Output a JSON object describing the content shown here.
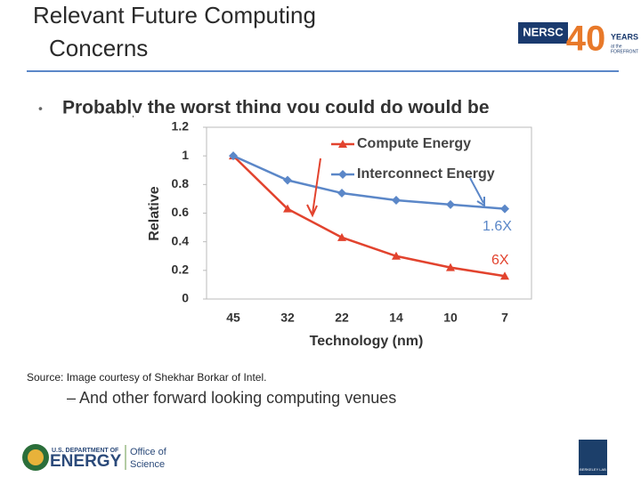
{
  "slide": {
    "title_lines": [
      "Relevant Future Computing",
      "Concerns"
    ],
    "bullet": "Probably the worst thing you could do would be",
    "sub_bullet": "– And other forward looking computing venues",
    "source": "Source: Image courtesy of Shekhar Borkar of Intel.",
    "logos": {
      "nersc": "NERSC",
      "years_number": "40",
      "years": "YEARS",
      "at_the": "at the",
      "forefront": "FOREFRONT",
      "doe_top": "U.S. DEPARTMENT OF",
      "doe": "ENERGY",
      "office_of": "Office of",
      "science": "Science",
      "lab": "BERKELEY LAB"
    }
  },
  "chart_data": {
    "type": "line",
    "x_label": "Technology (nm)",
    "y_label": "Relative",
    "categories": [
      "45",
      "32",
      "22",
      "14",
      "10",
      "7"
    ],
    "series": [
      {
        "name": "Compute Energy",
        "color": "#e2432e",
        "marker": "triangle",
        "values": [
          1,
          0.63,
          0.43,
          0.3,
          0.22,
          0.16
        ]
      },
      {
        "name": "Interconnect Energy",
        "color": "#5b87c8",
        "marker": "diamond",
        "values": [
          1,
          0.83,
          0.74,
          0.69,
          0.66,
          0.63
        ]
      }
    ],
    "annotations": [
      {
        "text": "1.6X",
        "color": "#5b87c8"
      },
      {
        "text": "6X",
        "color": "#e2432e"
      }
    ],
    "ylim": [
      0,
      1.2
    ],
    "yticks": [
      0,
      0.2,
      0.4,
      0.6,
      0.8,
      1,
      1.2
    ],
    "grid": false
  }
}
